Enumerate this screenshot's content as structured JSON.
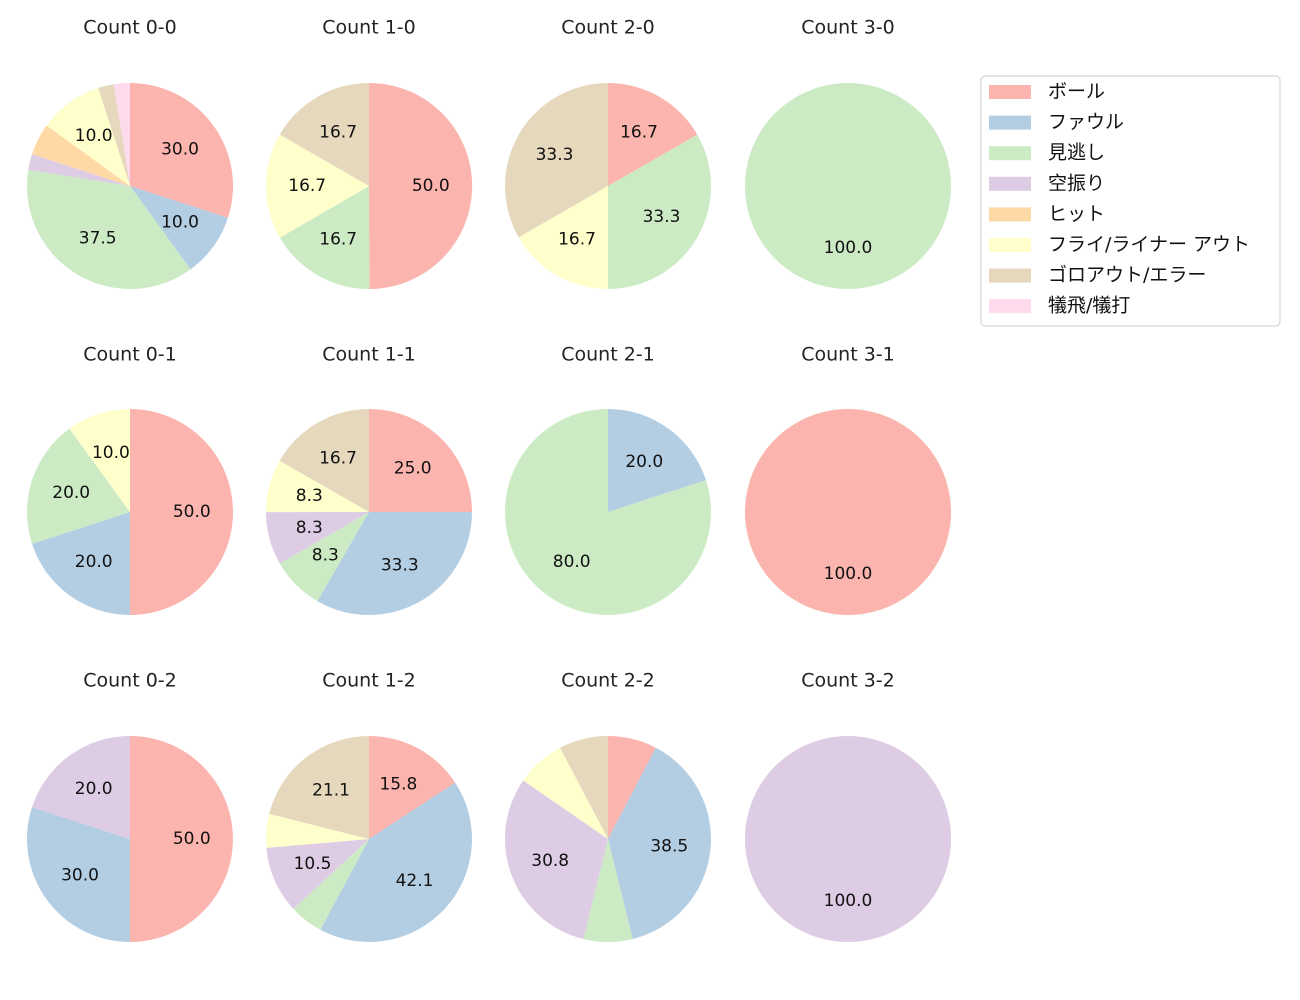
{
  "chart_data": {
    "type": "pie",
    "start_angle_deg": 90,
    "direction": "clockwise",
    "autopct_format": "%.1f",
    "legend": {
      "position": "top-right",
      "entries": [
        {
          "label": "ボール",
          "color": "#fbb4ae"
        },
        {
          "label": "ファウル",
          "color": "#b3cde3"
        },
        {
          "label": "見逃し",
          "color": "#ccebc5"
        },
        {
          "label": "空振り",
          "color": "#decbe4"
        },
        {
          "label": "ヒット",
          "color": "#fed9a6"
        },
        {
          "label": "フライ/ライナー アウト",
          "color": "#ffffcc"
        },
        {
          "label": "ゴロアウト/エラー",
          "color": "#e5d8bd"
        },
        {
          "label": "犠飛/犠打",
          "color": "#fddaec"
        }
      ]
    },
    "pies": [
      {
        "title": "Count 0-0",
        "values": [
          30.0,
          10.0,
          37.5,
          2.5,
          5.0,
          10.0,
          2.5,
          2.5
        ],
        "labels": [
          "30.0",
          "10.0",
          "37.5",
          "",
          "",
          "10.0",
          "",
          ""
        ]
      },
      {
        "title": "Count 1-0",
        "values": [
          50.0,
          0,
          16.7,
          0,
          0,
          16.7,
          16.7,
          0
        ],
        "labels": [
          "50.0",
          "",
          "16.7",
          "",
          "",
          "16.7",
          "16.7",
          ""
        ]
      },
      {
        "title": "Count 2-0",
        "values": [
          16.7,
          0,
          33.3,
          0,
          0,
          16.7,
          33.3,
          0
        ],
        "labels": [
          "16.7",
          "",
          "33.3",
          "",
          "",
          "16.7",
          "33.3",
          ""
        ]
      },
      {
        "title": "Count 3-0",
        "values": [
          0,
          0,
          100.0,
          0,
          0,
          0,
          0,
          0
        ],
        "labels": [
          "",
          "",
          "100.0",
          "",
          "",
          "",
          "",
          ""
        ]
      },
      {
        "title": "Count 0-1",
        "values": [
          50.0,
          20.0,
          20.0,
          0,
          0,
          10.0,
          0,
          0
        ],
        "labels": [
          "50.0",
          "20.0",
          "20.0",
          "",
          "",
          "10.0",
          "",
          ""
        ]
      },
      {
        "title": "Count 1-1",
        "values": [
          25.0,
          33.3,
          8.3,
          8.3,
          0,
          8.3,
          16.7,
          0
        ],
        "labels": [
          "25.0",
          "33.3",
          "8.3",
          "8.3",
          "",
          "8.3",
          "16.7",
          ""
        ]
      },
      {
        "title": "Count 2-1",
        "values": [
          0,
          20.0,
          80.0,
          0,
          0,
          0,
          0,
          0
        ],
        "labels": [
          "",
          "20.0",
          "80.0",
          "",
          "",
          "",
          "",
          ""
        ]
      },
      {
        "title": "Count 3-1",
        "values": [
          100.0,
          0,
          0,
          0,
          0,
          0,
          0,
          0
        ],
        "labels": [
          "100.0",
          "",
          "",
          "",
          "",
          "",
          "",
          ""
        ]
      },
      {
        "title": "Count 0-2",
        "values": [
          50.0,
          30.0,
          0,
          20.0,
          0,
          0,
          0,
          0
        ],
        "labels": [
          "50.0",
          "30.0",
          "",
          "20.0",
          "",
          "",
          "",
          ""
        ]
      },
      {
        "title": "Count 1-2",
        "values": [
          15.8,
          42.1,
          5.3,
          10.5,
          0,
          5.3,
          21.1,
          0
        ],
        "labels": [
          "15.8",
          "42.1",
          "",
          "10.5",
          "",
          "",
          "21.1",
          ""
        ]
      },
      {
        "title": "Count 2-2",
        "values": [
          7.7,
          38.5,
          7.7,
          30.8,
          0,
          7.7,
          7.7,
          0
        ],
        "labels": [
          "",
          "38.5",
          "",
          "30.8",
          "",
          "",
          "",
          ""
        ]
      },
      {
        "title": "Count 3-2",
        "values": [
          0,
          0,
          0,
          100.0,
          0,
          0,
          0,
          0
        ],
        "labels": [
          "",
          "",
          "",
          "100.0",
          "",
          "",
          "",
          ""
        ]
      }
    ]
  }
}
